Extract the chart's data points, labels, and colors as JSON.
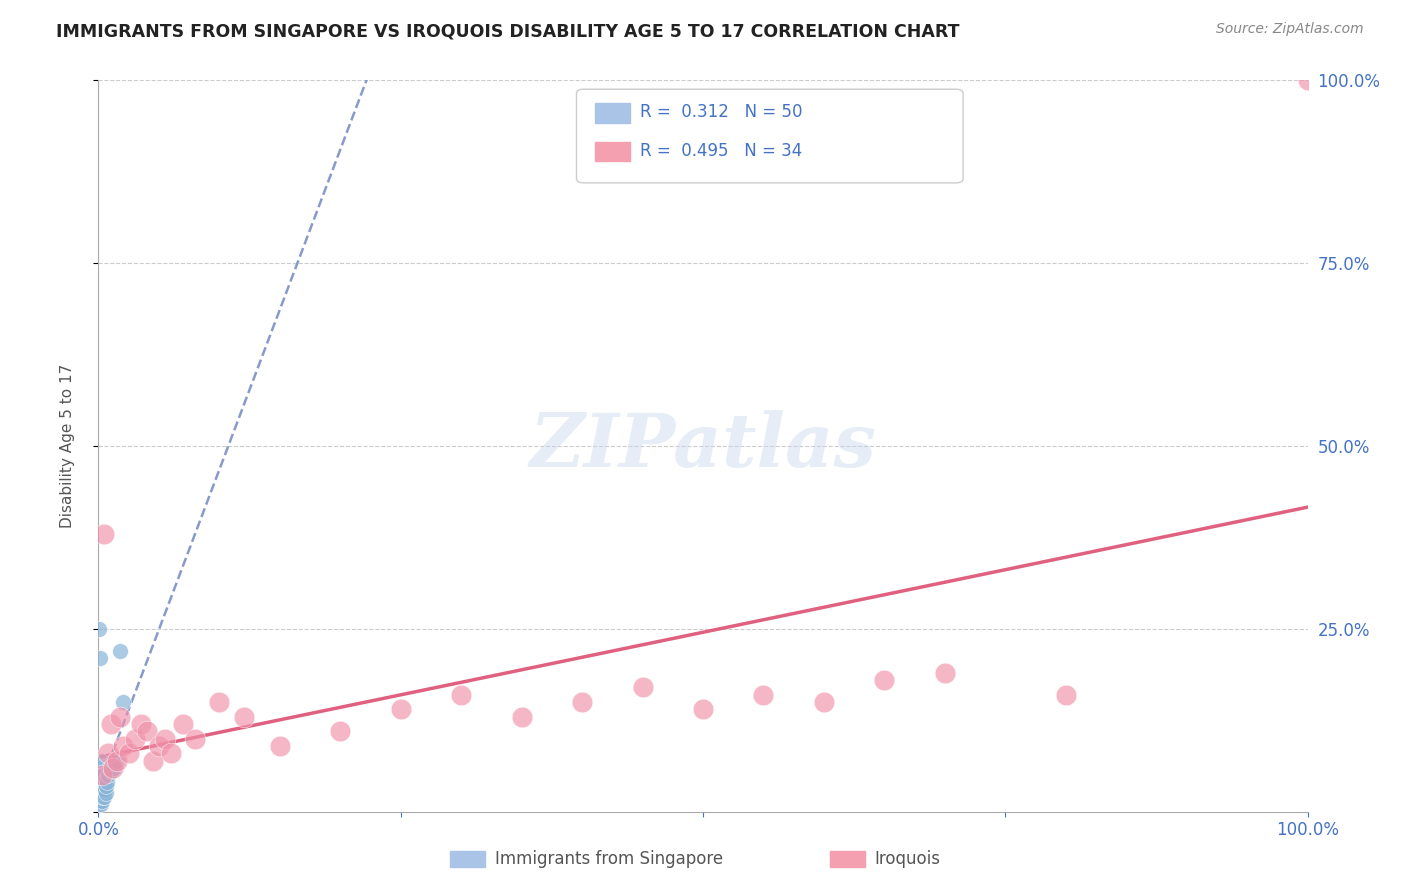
{
  "title": "IMMIGRANTS FROM SINGAPORE VS IROQUOIS DISABILITY AGE 5 TO 17 CORRELATION CHART",
  "source": "Source: ZipAtlas.com",
  "ylabel": "Disability Age 5 to 17",
  "watermark": "ZIPatlas",
  "series1_label": "Immigrants from Singapore",
  "series2_label": "Iroquois",
  "series1_color": "#88b4d8",
  "series2_color": "#f090a8",
  "series1_line_color": "#8899cc",
  "series2_line_color": "#e06080",
  "axis_label_color": "#4472c4",
  "r1_text": "R =  0.312   N = 50",
  "r2_text": "R =  0.495   N = 34",
  "legend1_color": "#aac4e8",
  "legend2_color": "#f4a0b0",
  "sg_x": [
    0.05,
    0.05,
    0.08,
    0.1,
    0.1,
    0.1,
    0.1,
    0.1,
    0.1,
    0.1,
    0.15,
    0.15,
    0.15,
    0.2,
    0.2,
    0.2,
    0.2,
    0.2,
    0.2,
    0.25,
    0.25,
    0.25,
    0.3,
    0.3,
    0.3,
    0.3,
    0.35,
    0.35,
    0.4,
    0.4,
    0.4,
    0.45,
    0.5,
    0.5,
    0.55,
    0.6,
    0.6,
    0.65,
    0.7,
    0.8,
    0.9,
    1.0,
    1.1,
    1.2,
    1.3,
    1.5,
    1.8,
    2.0,
    0.08,
    0.12
  ],
  "sg_y": [
    2.0,
    3.5,
    1.5,
    1.0,
    2.0,
    2.5,
    3.0,
    4.0,
    5.0,
    6.0,
    1.5,
    2.5,
    3.5,
    1.0,
    2.0,
    3.0,
    4.0,
    5.0,
    7.0,
    2.0,
    3.0,
    4.0,
    1.5,
    2.5,
    3.5,
    5.0,
    2.0,
    3.0,
    2.5,
    3.5,
    5.0,
    3.0,
    2.0,
    4.0,
    3.0,
    2.5,
    4.5,
    3.5,
    4.0,
    5.0,
    6.0,
    5.5,
    6.5,
    7.0,
    6.0,
    7.0,
    22.0,
    15.0,
    25.0,
    21.0
  ],
  "iro_x": [
    0.3,
    0.5,
    0.8,
    1.0,
    1.2,
    1.5,
    1.8,
    2.0,
    2.5,
    3.0,
    3.5,
    4.0,
    4.5,
    5.0,
    5.5,
    6.0,
    7.0,
    8.0,
    10.0,
    12.0,
    15.0,
    20.0,
    25.0,
    30.0,
    35.0,
    40.0,
    45.0,
    50.0,
    55.0,
    60.0,
    65.0,
    70.0,
    80.0,
    100.0
  ],
  "iro_y": [
    5.0,
    38.0,
    8.0,
    12.0,
    6.0,
    7.0,
    13.0,
    9.0,
    8.0,
    10.0,
    12.0,
    11.0,
    7.0,
    9.0,
    10.0,
    8.0,
    12.0,
    10.0,
    15.0,
    13.0,
    9.0,
    11.0,
    14.0,
    16.0,
    13.0,
    15.0,
    17.0,
    14.0,
    16.0,
    15.0,
    18.0,
    19.0,
    16.0,
    100.0
  ]
}
